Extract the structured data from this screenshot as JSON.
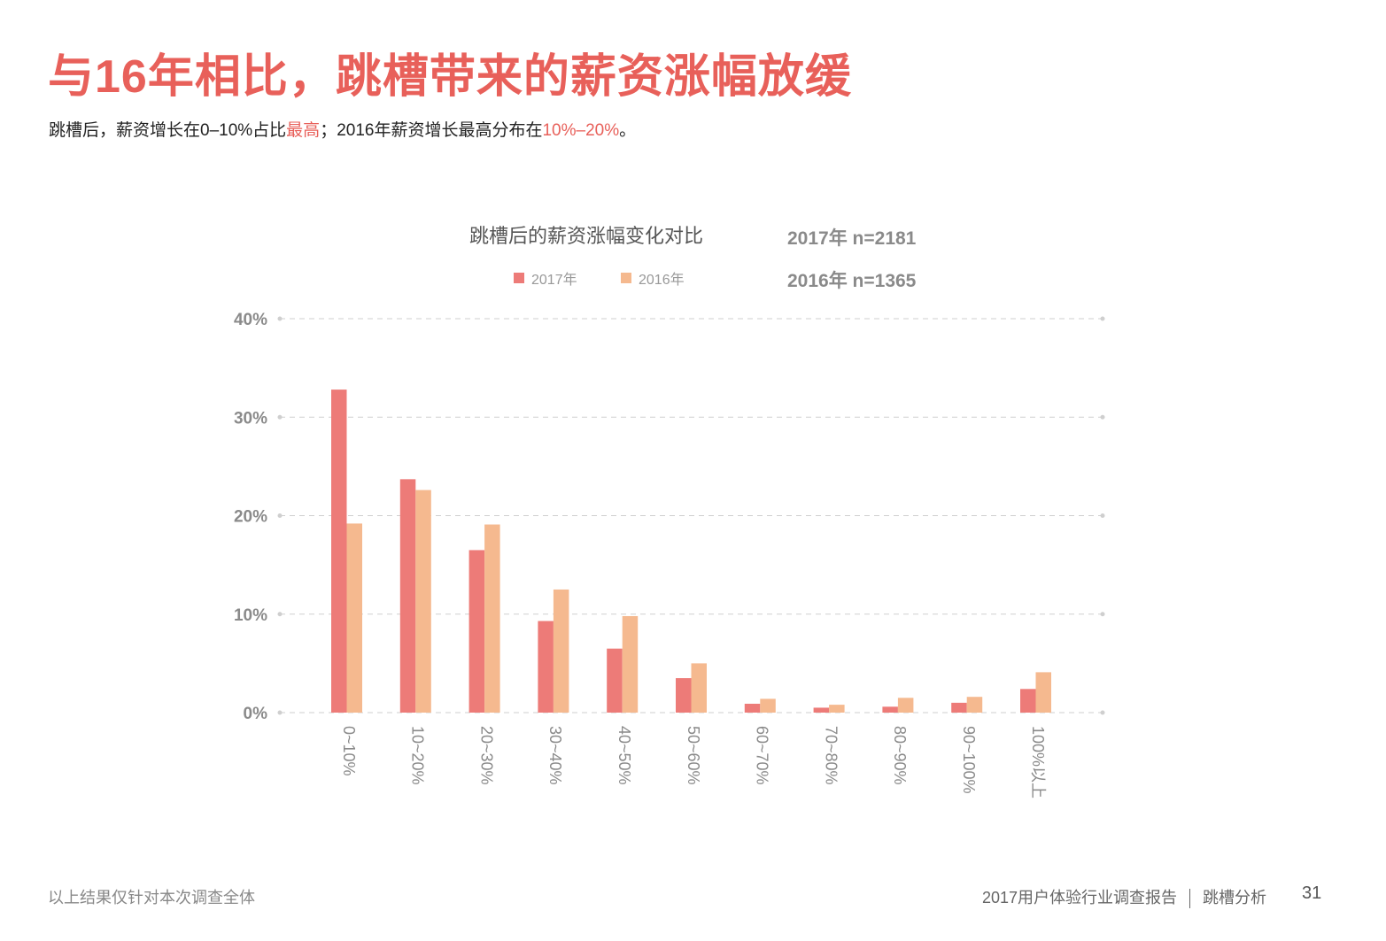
{
  "page": {
    "title": "与16年相比，跳槽带来的薪资涨幅放缓",
    "subtitle": {
      "part1": "跳槽后，薪资增长在0–10%占比",
      "hl1": "最高",
      "part2": "；2016年薪资增长最高分布在",
      "hl2": "10%–20%",
      "part3": "。"
    },
    "footer": {
      "note": "以上结果仅针对本次调查全体",
      "report": "2017用户体验行业调查报告",
      "section": "跳槽分析",
      "page_number": "31"
    }
  },
  "chart_data": {
    "type": "bar",
    "title": "跳槽后的薪资涨幅变化对比",
    "sample_sizes": [
      "2017年 n=2181",
      "2016年 n=1365"
    ],
    "legend_position": "top",
    "categories": [
      "0~10%",
      "10~20%",
      "20~30%",
      "30~40%",
      "40~50%",
      "50~60%",
      "60~70%",
      "70~80%",
      "80~90%",
      "90~100%",
      "100%以上"
    ],
    "series": [
      {
        "name": "2017年",
        "color": "#ed7b78",
        "values": [
          32.8,
          23.7,
          16.5,
          9.3,
          6.5,
          3.5,
          0.9,
          0.5,
          0.6,
          1.0,
          2.4
        ]
      },
      {
        "name": "2016年",
        "color": "#f5b98f",
        "values": [
          19.2,
          22.6,
          19.1,
          12.5,
          9.8,
          5.0,
          1.4,
          0.8,
          1.5,
          1.6,
          4.1
        ]
      }
    ],
    "y_ticks": [
      "0%",
      "10%",
      "20%",
      "30%",
      "40%"
    ],
    "ylim": [
      0,
      40
    ],
    "grid": true
  }
}
